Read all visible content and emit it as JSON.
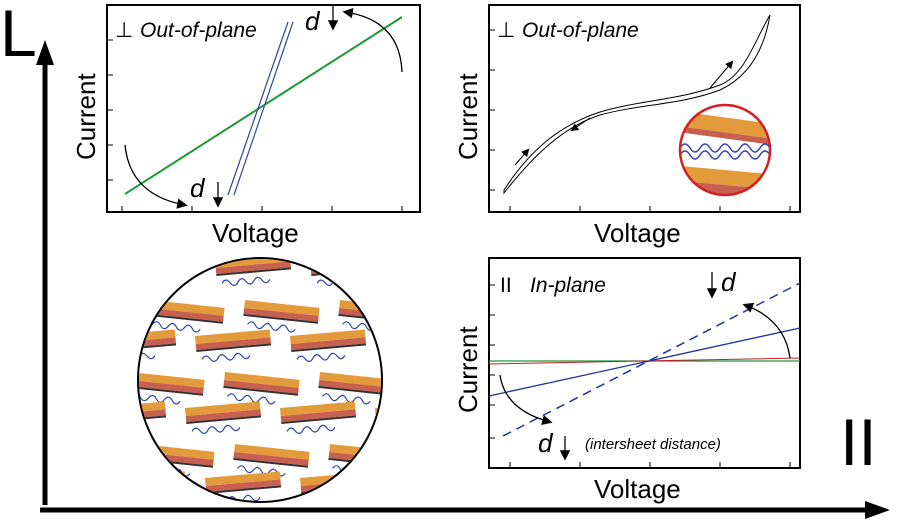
{
  "axes": {
    "perpendicular": "L",
    "parallel": "II"
  },
  "panels": [
    {
      "symbol": "⊥",
      "title": "Out-of-plane",
      "y_label": "Current",
      "x_label": "Voltage",
      "annotations": [
        "d",
        "d"
      ]
    },
    {
      "symbol": "⊥",
      "title": "Out-of-plane",
      "y_label": "Current",
      "x_label": "Voltage"
    },
    {
      "symbol": "II",
      "title": "In-plane",
      "y_label": "Current",
      "x_label": "Voltage",
      "annotations": [
        "d",
        "d",
        "(intersheet distance)"
      ]
    }
  ]
}
